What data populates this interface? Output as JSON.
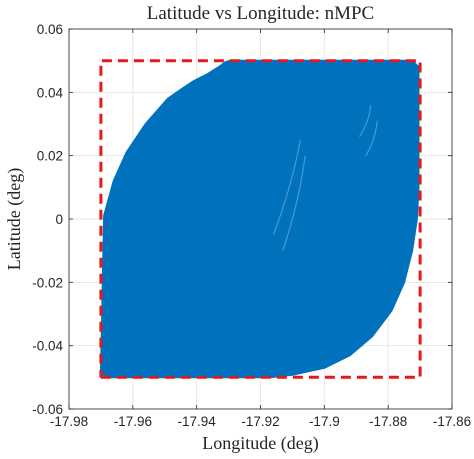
{
  "chart_data": {
    "type": "area",
    "title": "Latitude vs Longitude: nMPC",
    "xlabel": "Longitude (deg)",
    "ylabel": "Latitude (deg)",
    "xlim": [
      -17.98,
      -17.86
    ],
    "ylim": [
      -0.06,
      0.06
    ],
    "xticks": [
      -17.98,
      -17.96,
      -17.94,
      -17.92,
      -17.9,
      -17.88,
      -17.86
    ],
    "yticks": [
      -0.06,
      -0.04,
      -0.02,
      0,
      0.02,
      0.04,
      0.06
    ],
    "xtick_labels": [
      "-17.98",
      "-17.96",
      "-17.94",
      "-17.92",
      "-17.9",
      "-17.88",
      "-17.86"
    ],
    "ytick_labels": [
      "-0.06",
      "-0.04",
      "-0.02",
      "0",
      "0.02",
      "0.04",
      "0.06"
    ],
    "grid": true,
    "series": [
      {
        "color": "#0072bd",
        "style": "filled trajectory region",
        "x": [
          -17.97,
          -17.969,
          -17.966,
          -17.962,
          -17.956,
          -17.949,
          -17.944,
          -17.941,
          -17.9365,
          -17.933,
          -17.931,
          -17.9295,
          -17.8725,
          -17.8705,
          -17.8705,
          -17.871,
          -17.8725,
          -17.875,
          -17.879,
          -17.885,
          -17.892,
          -17.9,
          -17.91,
          -17.917,
          -17.923,
          -17.93,
          -17.97
        ],
        "y": [
          -0.05,
          0.001,
          0.012,
          0.021,
          0.03,
          0.038,
          0.0415,
          0.0435,
          0.0458,
          0.048,
          0.0495,
          0.05,
          0.05,
          0.048,
          0.01,
          0.0,
          -0.01,
          -0.02,
          -0.029,
          -0.037,
          -0.043,
          -0.047,
          -0.0492,
          -0.05,
          -0.05,
          -0.05,
          -0.05
        ]
      },
      {
        "color": "#e31a1c",
        "style": "dashed boundary",
        "x": [
          -17.97,
          -17.87,
          -17.87,
          -17.97,
          -17.97
        ],
        "y": [
          -0.05,
          -0.05,
          0.05,
          0.05,
          -0.05
        ]
      }
    ]
  }
}
